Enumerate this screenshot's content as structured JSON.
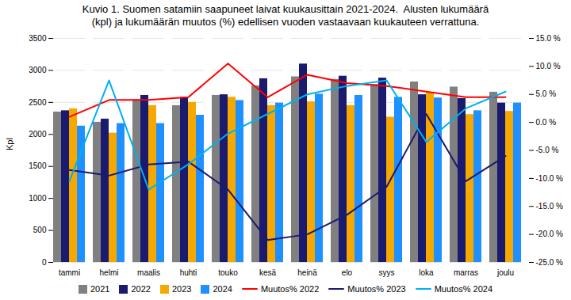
{
  "chart_data": {
    "type": "bar",
    "title": "Kuvio 1. Suomen satamiin saapuneet laivat kuukausittain 2021-2024.  Alusten lukumäärä\n(kpl) ja lukumäärän muutos (%) edellisen vuoden vastaavaan kuukauteen verrattuna.",
    "categories": [
      "tammi",
      "helmi",
      "maalis",
      "huhti",
      "touko",
      "kesä",
      "heinä",
      "elo",
      "syys",
      "loka",
      "marras",
      "joulu"
    ],
    "ylabel": "Kpl",
    "ylim": [
      0,
      3500
    ],
    "yticks": [
      0,
      500,
      1000,
      1500,
      2000,
      2500,
      3000,
      3500
    ],
    "y2lim": [
      -25.0,
      15.0
    ],
    "y2ticks": [
      {
        "value": -25.0,
        "label": "-25.0 %"
      },
      {
        "value": -20.0,
        "label": "-20.0 %"
      },
      {
        "value": -15.0,
        "label": "-15.0 %"
      },
      {
        "value": -10.0,
        "label": "-10.0 %"
      },
      {
        "value": -5.0,
        "label": "-5.0 %"
      },
      {
        "value": 0.0,
        "label": "0.0 %"
      },
      {
        "value": 5.0,
        "label": "5.0 %"
      },
      {
        "value": 10.0,
        "label": "10.0 %"
      },
      {
        "value": 15.0,
        "label": "15.0 %"
      }
    ],
    "grid": true,
    "legend": "bottom",
    "series": [
      {
        "name": "2021",
        "type": "bar",
        "color": "#808080",
        "values": [
          2350,
          2190,
          2540,
          2450,
          2610,
          2760,
          2900,
          2860,
          2780,
          2820,
          2740,
          2660
        ]
      },
      {
        "name": "2022",
        "type": "bar",
        "color": "#1a1a6e",
        "values": [
          2370,
          2240,
          2610,
          2580,
          2620,
          2870,
          3100,
          2910,
          2880,
          2620,
          2560,
          2490
        ]
      },
      {
        "name": "2023",
        "type": "bar",
        "color": "#f5a800",
        "values": [
          2400,
          2020,
          2450,
          2500,
          2580,
          2450,
          2510,
          2450,
          2270,
          2650,
          2310,
          2360
        ]
      },
      {
        "name": "2024",
        "type": "bar",
        "color": "#1e90ff",
        "values": [
          2130,
          2170,
          2170,
          2300,
          2530,
          2490,
          2630,
          2610,
          2580,
          2570,
          2370,
          2490
        ]
      },
      {
        "name": "Muutos% 2022",
        "type": "line",
        "axis": "y2",
        "color": "#ff0000",
        "values": [
          1.0,
          4.0,
          4.0,
          4.5,
          10.5,
          4.5,
          8.5,
          7.0,
          6.5,
          5.5,
          4.5,
          4.5
        ]
      },
      {
        "name": "Muutos% 2023",
        "type": "line",
        "axis": "y2",
        "color": "#1a1a6e",
        "values": [
          -8.5,
          -9.5,
          -7.5,
          -7.0,
          -12.0,
          -21.0,
          -20.0,
          -16.5,
          -11.5,
          1.5,
          -10.5,
          -6.0
        ]
      },
      {
        "name": "Muutos% 2024",
        "type": "line",
        "axis": "y2",
        "color": "#00b0f0",
        "values": [
          -10.5,
          7.5,
          -12.0,
          -7.5,
          -2.0,
          1.5,
          5.0,
          6.5,
          7.5,
          -3.5,
          2.5,
          5.5
        ]
      }
    ]
  }
}
